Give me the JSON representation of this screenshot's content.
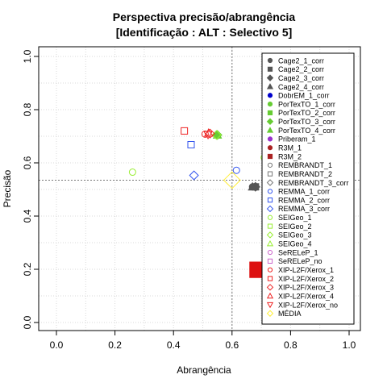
{
  "chart_data": {
    "type": "scatter",
    "title": "Perspectiva precisão/abrangência",
    "subtitle": "[Identificação : ALT : Selectivo 5]",
    "xlabel": "Abrangência",
    "ylabel": "Precisão",
    "xlim": [
      0,
      1
    ],
    "ylim": [
      0,
      1
    ],
    "xticks": [
      "0.0",
      "0.2",
      "0.4",
      "0.6",
      "0.8",
      "1.0"
    ],
    "yticks": [
      "0.0",
      "0.2",
      "0.4",
      "0.6",
      "0.8",
      "1.0"
    ],
    "grid": true,
    "reference_lines": {
      "x": 0.6,
      "y": 0.535
    },
    "legend_position": "top-right",
    "series": [
      {
        "name": "Cage2_1_corr",
        "shape": "circle",
        "fill": true,
        "color": "#555555",
        "x": 0.67,
        "y": 0.51,
        "size": 1
      },
      {
        "name": "Cage2_2_corr",
        "shape": "square",
        "fill": true,
        "color": "#555555",
        "x": 0.68,
        "y": 0.51,
        "size": 1
      },
      {
        "name": "Cage2_3_corr",
        "shape": "diamond",
        "fill": true,
        "color": "#555555",
        "x": 0.68,
        "y": 0.51,
        "size": 1
      },
      {
        "name": "Cage2_4_corr",
        "shape": "triangle-up",
        "fill": true,
        "color": "#555555",
        "x": 0.67,
        "y": 0.51,
        "size": 1
      },
      {
        "name": "DobrEM_1_corr",
        "shape": "circle",
        "fill": true,
        "color": "#0000cc",
        "x": null,
        "y": null,
        "size": 1
      },
      {
        "name": "PorTexTO_1_corr",
        "shape": "circle",
        "fill": true,
        "color": "#66cc33",
        "x": null,
        "y": null,
        "size": 1
      },
      {
        "name": "PorTexTO_2_corr",
        "shape": "square",
        "fill": true,
        "color": "#66cc33",
        "x": null,
        "y": null,
        "size": 1
      },
      {
        "name": "PorTexTO_3_corr",
        "shape": "diamond",
        "fill": true,
        "color": "#66cc33",
        "x": 0.55,
        "y": 0.705,
        "size": 1
      },
      {
        "name": "PorTexTO_4_corr",
        "shape": "triangle-up",
        "fill": true,
        "color": "#66cc33",
        "x": 0.55,
        "y": 0.705,
        "size": 1
      },
      {
        "name": "Priberam_1",
        "shape": "circle",
        "fill": true,
        "color": "#9933cc",
        "x": null,
        "y": null,
        "size": 1
      },
      {
        "name": "R3M_1",
        "shape": "circle",
        "fill": true,
        "color": "#aa2222",
        "x": null,
        "y": null,
        "size": 1
      },
      {
        "name": "R3M_2",
        "shape": "square",
        "fill": true,
        "color": "#aa2222",
        "x": null,
        "y": null,
        "size": 1
      },
      {
        "name": "REMBRANDT_1",
        "shape": "circle",
        "fill": false,
        "color": "#777777",
        "x": null,
        "y": null,
        "size": 1
      },
      {
        "name": "REMBRANDT_2",
        "shape": "square",
        "fill": false,
        "color": "#777777",
        "x": null,
        "y": null,
        "size": 1
      },
      {
        "name": "REMBRANDT_3_corr",
        "shape": "diamond",
        "fill": false,
        "color": "#777777",
        "x": null,
        "y": null,
        "size": 1
      },
      {
        "name": "REMMA_1_corr",
        "shape": "circle",
        "fill": false,
        "color": "#3355ee",
        "x": 0.615,
        "y": 0.572,
        "size": 1
      },
      {
        "name": "REMMA_2_corr",
        "shape": "square",
        "fill": false,
        "color": "#3355ee",
        "x": 0.46,
        "y": 0.668,
        "size": 1
      },
      {
        "name": "REMMA_3_corr",
        "shape": "diamond",
        "fill": false,
        "color": "#3355ee",
        "x": 0.47,
        "y": 0.553,
        "size": 1
      },
      {
        "name": "SEIGeo_1",
        "shape": "circle",
        "fill": false,
        "color": "#99ee33",
        "x": 0.26,
        "y": 0.565,
        "size": 1
      },
      {
        "name": "SEIGeo_2",
        "shape": "square",
        "fill": false,
        "color": "#99ee33",
        "x": null,
        "y": null,
        "size": 1
      },
      {
        "name": "SEIGeo_3",
        "shape": "diamond",
        "fill": false,
        "color": "#99ee33",
        "x": 0.547,
        "y": 0.705,
        "size": 1
      },
      {
        "name": "SEIGeo_4",
        "shape": "triangle-up",
        "fill": false,
        "color": "#99ee33",
        "x": null,
        "y": null,
        "size": 1
      },
      {
        "name": "SeRELeP_1",
        "shape": "circle",
        "fill": false,
        "color": "#cc66cc",
        "x": null,
        "y": null,
        "size": 1
      },
      {
        "name": "SeRELeP_no",
        "shape": "square",
        "fill": false,
        "color": "#cc66cc",
        "x": null,
        "y": null,
        "size": 1
      },
      {
        "name": "XIP-L2F/Xerox_1",
        "shape": "circle",
        "fill": false,
        "color": "#ee2222",
        "x": 0.508,
        "y": 0.708,
        "size": 1
      },
      {
        "name": "XIP-L2F/Xerox_2",
        "shape": "square",
        "fill": false,
        "color": "#ee2222",
        "x": 0.437,
        "y": 0.72,
        "size": 1
      },
      {
        "name": "XIP-L2F/Xerox_3",
        "shape": "diamond",
        "fill": false,
        "color": "#ee2222",
        "x": 0.525,
        "y": 0.71,
        "size": 1
      },
      {
        "name": "XIP-L2F/Xerox_4",
        "shape": "triangle-up",
        "fill": false,
        "color": "#ee2222",
        "x": 0.52,
        "y": 0.712,
        "size": 1
      },
      {
        "name": "XIP-L2F/Xerox_no",
        "shape": "triangle-down",
        "fill": false,
        "color": "#ee2222",
        "x": 0.518,
        "y": 0.706,
        "size": 1
      },
      {
        "name": "MÉDIA",
        "shape": "diamond",
        "fill": false,
        "color": "#ffee33",
        "x": 0.6,
        "y": 0.535,
        "size": 1.9
      }
    ],
    "unlabeled_marks": [
      {
        "shape": "square",
        "fill": true,
        "color": "#dd1111",
        "x": 0.687,
        "y": 0.198,
        "size": 2.4
      },
      {
        "shape": "circle",
        "fill": false,
        "color": "#99ee33",
        "x": 0.71,
        "y": 0.62,
        "size": 1
      }
    ]
  }
}
